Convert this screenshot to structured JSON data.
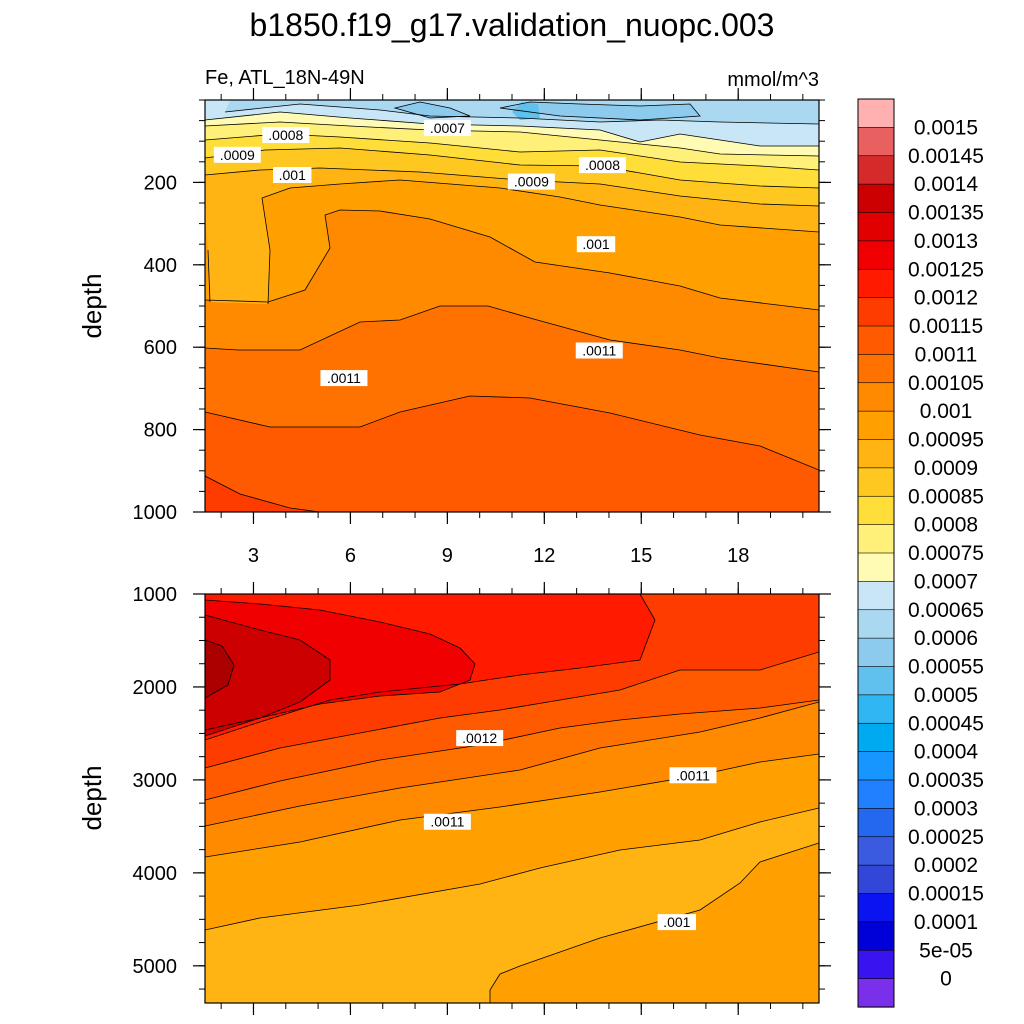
{
  "chart_data": {
    "type": "heatmap",
    "title": "b1850.f19_g17.validation_nuopc.003",
    "variable_region": "Fe, ATL_18N-49N",
    "units": "mmol/m^3",
    "ylabel": "depth",
    "x_ticks": [
      3,
      6,
      9,
      12,
      15,
      18
    ],
    "x_range": [
      1.5,
      20.5
    ],
    "colorbar": {
      "labels": [
        "0.0015",
        "0.00145",
        "0.0014",
        "0.00135",
        "0.0013",
        "0.00125",
        "0.0012",
        "0.00115",
        "0.0011",
        "0.00105",
        "0.001",
        "0.00095",
        "0.0009",
        "0.00085",
        "0.0008",
        "0.00075",
        "0.0007",
        "0.00065",
        "0.0006",
        "0.00055",
        "0.0005",
        "0.00045",
        "0.0004",
        "0.00035",
        "0.0003",
        "0.00025",
        "0.0002",
        "0.00015",
        "0.0001",
        "5e-05",
        "0"
      ],
      "colors": [
        "#ffb0b0",
        "#e86060",
        "#d42a2a",
        "#cc0000",
        "#e00000",
        "#f00000",
        "#ff1a00",
        "#ff3c00",
        "#ff5a00",
        "#ff7200",
        "#ff8a00",
        "#ffa000",
        "#ffb414",
        "#ffc820",
        "#ffde3a",
        "#fff07a",
        "#fffab4",
        "#c8e6f6",
        "#aad8f0",
        "#8ccaee",
        "#60c0ee",
        "#30b6f2",
        "#00aaf0",
        "#1896ff",
        "#2080ff",
        "#2468f0",
        "#3a5ae0",
        "#3246d8",
        "#0a14f0",
        "#0000d8",
        "#3a14ee",
        "#7a30ea"
      ]
    },
    "panels": [
      {
        "name": "upper",
        "y_range": [
          0,
          1000
        ],
        "y_ticks": [
          200,
          400,
          600,
          800,
          1000
        ],
        "contour_labels": [
          {
            "text": ".0008",
            "x": 4.0,
            "y": 85
          },
          {
            "text": ".0007",
            "x": 9.0,
            "y": 68
          },
          {
            "text": ".0009",
            "x": 2.5,
            "y": 133
          },
          {
            "text": ".0008",
            "x": 13.8,
            "y": 158
          },
          {
            "text": ".001",
            "x": 4.2,
            "y": 182
          },
          {
            "text": ".0009",
            "x": 11.6,
            "y": 198
          },
          {
            "text": ".001",
            "x": 13.6,
            "y": 350
          },
          {
            "text": ".0011",
            "x": 13.7,
            "y": 608
          },
          {
            "text": ".0011",
            "x": 5.8,
            "y": 675
          }
        ]
      },
      {
        "name": "lower",
        "y_range": [
          1000,
          5400
        ],
        "y_ticks": [
          1000,
          2000,
          3000,
          4000,
          5000
        ],
        "contour_labels": [
          {
            "text": ".0012",
            "x": 10.0,
            "y": 2550
          },
          {
            "text": ".0011",
            "x": 16.6,
            "y": 2950
          },
          {
            "text": ".0011",
            "x": 9.0,
            "y": 3450
          },
          {
            "text": ".001",
            "x": 16.1,
            "y": 4530
          }
        ]
      }
    ]
  }
}
